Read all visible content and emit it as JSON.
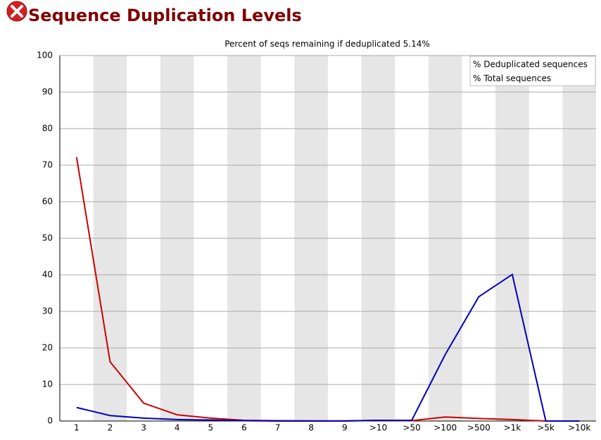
{
  "chart_data": {
    "type": "line",
    "title": "Sequence Duplication Levels",
    "subtitle": "Percent of seqs remaining if deduplicated 5.14%",
    "categories": [
      "1",
      "2",
      "3",
      "4",
      "5",
      "6",
      "7",
      "8",
      "9",
      ">10",
      ">50",
      ">100",
      ">500",
      ">1k",
      ">5k",
      ">10k"
    ],
    "series": [
      {
        "name": "% Deduplicated sequences",
        "color": "#cc0000",
        "values": [
          72.2,
          16.2,
          4.9,
          1.7,
          0.8,
          0.2,
          0.1,
          0.05,
          0.05,
          0.2,
          0.1,
          1.1,
          0.7,
          0.4,
          0,
          0
        ]
      },
      {
        "name": "% Total sequences",
        "color": "#0000bb",
        "values": [
          3.7,
          1.5,
          0.8,
          0.4,
          0.3,
          0.1,
          0,
          0,
          0,
          0.2,
          0.2,
          18.2,
          34.0,
          40.1,
          0,
          0
        ]
      }
    ],
    "ylim": [
      0,
      100
    ],
    "yticks": [
      0,
      10,
      20,
      30,
      40,
      50,
      60,
      70,
      80,
      90,
      100
    ],
    "grid": true,
    "legend": "top-right"
  }
}
